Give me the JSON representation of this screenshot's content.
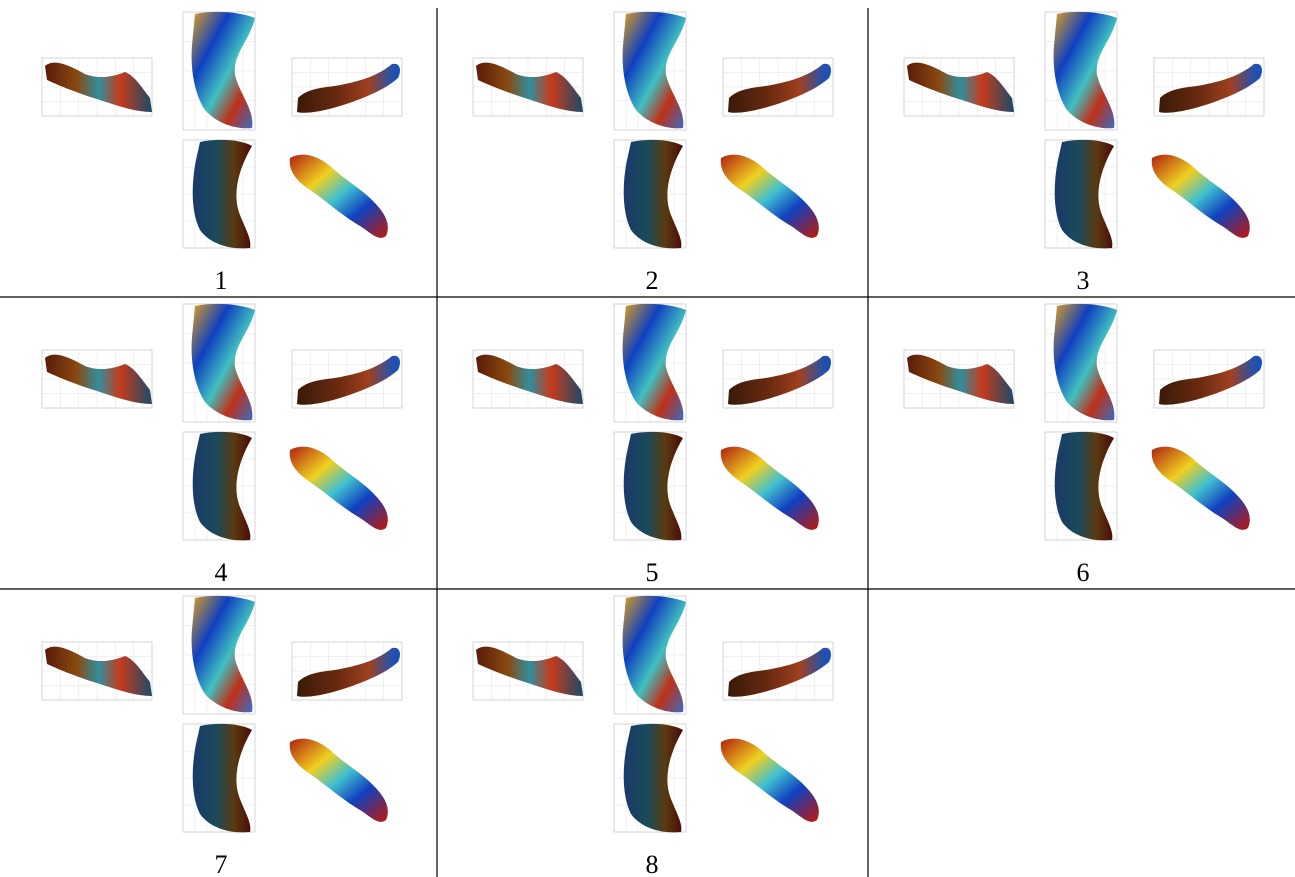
{
  "panels": [
    {
      "label": "1"
    },
    {
      "label": "2"
    },
    {
      "label": "3"
    },
    {
      "label": "4"
    },
    {
      "label": "5"
    },
    {
      "label": "6"
    },
    {
      "label": "7"
    },
    {
      "label": "8"
    }
  ]
}
